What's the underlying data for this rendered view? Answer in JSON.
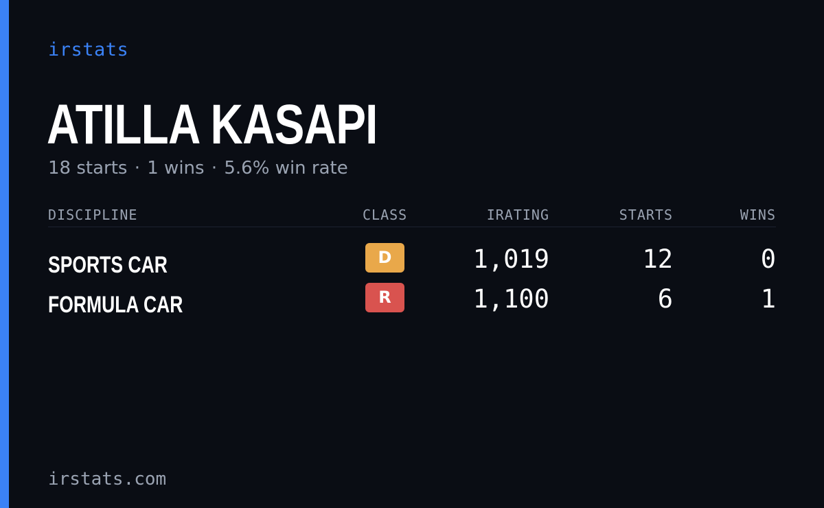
{
  "brand": "irstats",
  "driver": {
    "name": "ATILLA KASAPI",
    "starts_text": "18 starts",
    "wins_text": "1 wins",
    "win_rate_text": "5.6% win rate",
    "separator": "·"
  },
  "table": {
    "headers": {
      "discipline": "DISCIPLINE",
      "class": "CLASS",
      "irating": "IRATING",
      "starts": "STARTS",
      "wins": "WINS"
    },
    "rows": [
      {
        "discipline": "SPORTS CAR",
        "class": "D",
        "class_color": "#e9a84a",
        "irating": "1,019",
        "starts": "12",
        "wins": "0"
      },
      {
        "discipline": "FORMULA CAR",
        "class": "R",
        "class_color": "#d9534f",
        "irating": "1,100",
        "starts": "6",
        "wins": "1"
      }
    ]
  },
  "footer": {
    "url": "irstats.com"
  },
  "colors": {
    "background": "#0a0d14",
    "accent": "#3b82f6",
    "muted_text": "#9aa3b2",
    "primary_text": "#ffffff"
  }
}
